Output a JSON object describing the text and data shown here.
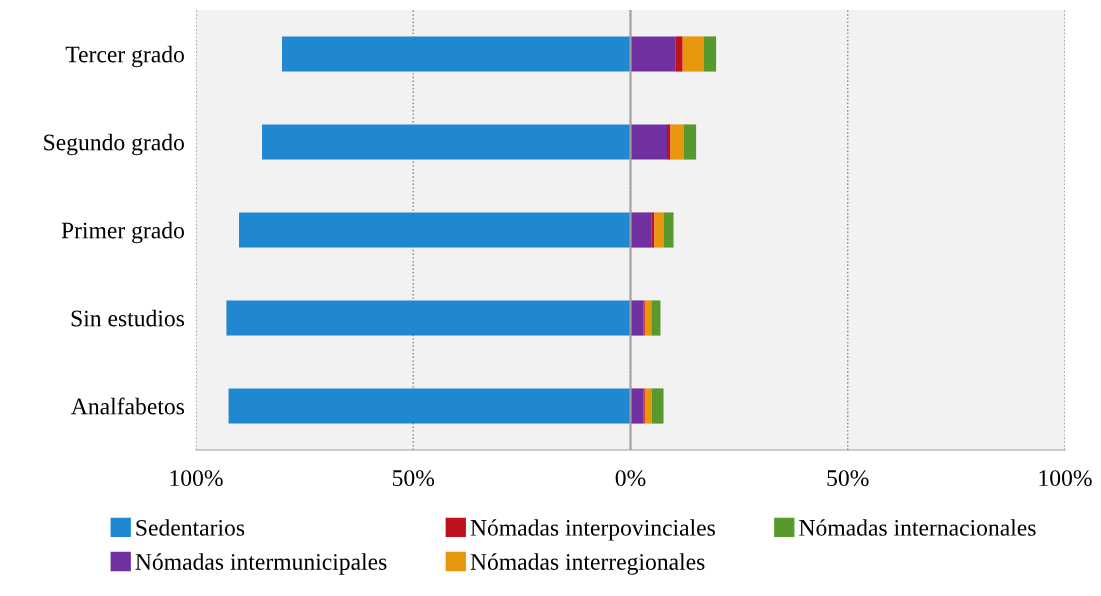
{
  "chart_data": {
    "type": "bar",
    "orientation": "horizontal",
    "stacked": true,
    "categories": [
      "Tercer grado",
      "Segundo grado",
      "Primer grado",
      "Sin estudios",
      "Analfabetos"
    ],
    "series": [
      {
        "name": "Sedentarios",
        "color": "#1f88d0",
        "values": [
          -80.2,
          -84.8,
          -90.1,
          -93.0,
          -92.5
        ]
      },
      {
        "name": "Nómadas intermunicipales",
        "color": "#7030a0",
        "values": [
          10.3,
          8.4,
          4.9,
          3.0,
          3.0
        ]
      },
      {
        "name": "Nómadas interpovinciales",
        "color": "#c0111f",
        "values": [
          1.7,
          0.8,
          0.6,
          0.3,
          0.3
        ]
      },
      {
        "name": "Nómadas interregionales",
        "color": "#e8960e",
        "values": [
          4.8,
          3.0,
          2.1,
          1.5,
          1.6
        ]
      },
      {
        "name": "Nómadas internacionales",
        "color": "#58992e",
        "values": [
          2.9,
          2.9,
          2.3,
          2.1,
          2.7
        ]
      }
    ],
    "xlim": [
      -100,
      100
    ],
    "xticks": [
      {
        "value": -100,
        "label": "100%"
      },
      {
        "value": -50,
        "label": "50%"
      },
      {
        "value": 0,
        "label": "0%"
      },
      {
        "value": 50,
        "label": "50%"
      },
      {
        "value": 100,
        "label": "100%"
      }
    ],
    "grid": "x",
    "legend": "bottom",
    "ref_lines": [
      {
        "axis": "x",
        "value": 0,
        "color": "#a0a0a0",
        "line_style": "solid"
      }
    ]
  }
}
